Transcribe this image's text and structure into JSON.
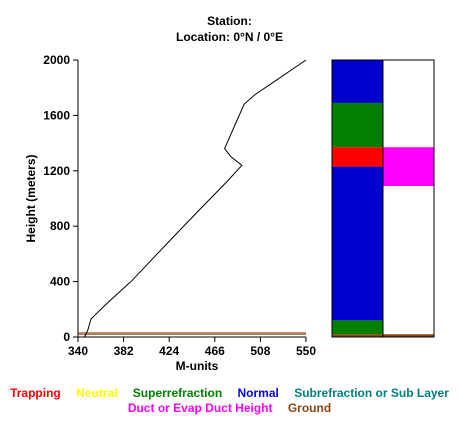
{
  "header": {
    "station_line": "Station:",
    "location_line": "Location:   0°N /   0°E"
  },
  "chart_data": {
    "type": "line",
    "xlabel": "M-units",
    "ylabel": "Height (meters)",
    "xlim": [
      340,
      550
    ],
    "ylim": [
      0,
      2000
    ],
    "x_ticks": [
      340,
      382,
      424,
      466,
      508,
      550
    ],
    "y_ticks": [
      0,
      400,
      800,
      1200,
      1600,
      2000
    ],
    "x_tick_labels": [
      "340",
      "382",
      "424",
      "466",
      "508",
      "550"
    ],
    "y_tick_labels": [
      "0",
      "400",
      "800",
      "1200",
      "1600",
      "2000"
    ],
    "series": [
      {
        "color": "#000000",
        "points": [
          [
            346,
            0
          ],
          [
            349,
            50
          ],
          [
            352,
            130
          ],
          [
            365,
            230
          ],
          [
            390,
            410
          ],
          [
            425,
            700
          ],
          [
            452,
            920
          ],
          [
            477,
            1120
          ],
          [
            491,
            1240
          ],
          [
            481,
            1300
          ],
          [
            475,
            1360
          ],
          [
            484,
            1520
          ],
          [
            493,
            1680
          ],
          [
            503,
            1750
          ],
          [
            520,
            1840
          ],
          [
            550,
            2000
          ]
        ]
      }
    ],
    "ground": {
      "color": "#8b4513",
      "heights": [
        20,
        30
      ]
    },
    "duct_column": {
      "label_colors": [
        "#0000ff",
        "#008000",
        "#ff0000",
        "#0000ff",
        "#008000",
        "#8b4513"
      ],
      "layers": [
        {
          "from": 1690,
          "to": 2000,
          "color": "#0000cc"
        },
        {
          "from": 1370,
          "to": 1690,
          "color": "#007f00"
        },
        {
          "from": 1230,
          "to": 1370,
          "color": "#ff0000"
        },
        {
          "from": 120,
          "to": 1230,
          "color": "#0000cc"
        },
        {
          "from": 20,
          "to": 120,
          "color": "#007f00"
        },
        {
          "from": 0,
          "to": 20,
          "color": "#8b4513"
        }
      ],
      "ducts": [
        {
          "from": 1090,
          "to": 1370,
          "color": "#ff00ff"
        },
        {
          "from": 0,
          "to": 20,
          "color": "#8b4513"
        }
      ]
    },
    "legend": {
      "row1": [
        {
          "label": "Trapping",
          "color": "#ff0000"
        },
        {
          "label": "Neutral",
          "color": "#ffff00"
        },
        {
          "label": "Superrefraction",
          "color": "#008000"
        },
        {
          "label": "Normal",
          "color": "#0000ff"
        },
        {
          "label": "Subrefraction or Sub Layer",
          "color": "#008080"
        }
      ],
      "row2": [
        {
          "label": "Duct or Evap Duct Height",
          "color": "#ff00ff"
        },
        {
          "label": "Ground",
          "color": "#8b4513"
        }
      ]
    }
  }
}
